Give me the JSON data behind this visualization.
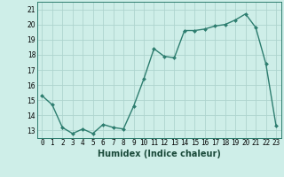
{
  "xlabel": "Humidex (Indice chaleur)",
  "x": [
    0,
    1,
    2,
    3,
    4,
    5,
    6,
    7,
    8,
    9,
    10,
    11,
    12,
    13,
    14,
    15,
    16,
    17,
    18,
    19,
    20,
    21,
    22,
    23
  ],
  "y": [
    15.3,
    14.7,
    13.2,
    12.8,
    13.1,
    12.8,
    13.4,
    13.2,
    13.1,
    14.6,
    16.4,
    18.4,
    17.9,
    17.8,
    19.6,
    19.6,
    19.7,
    19.9,
    20.0,
    20.3,
    20.7,
    19.8,
    17.4,
    13.3
  ],
  "ylim": [
    12.5,
    21.5
  ],
  "xlim": [
    -0.5,
    23.5
  ],
  "yticks": [
    13,
    14,
    15,
    16,
    17,
    18,
    19,
    20,
    21
  ],
  "xticks": [
    0,
    1,
    2,
    3,
    4,
    5,
    6,
    7,
    8,
    9,
    10,
    11,
    12,
    13,
    14,
    15,
    16,
    17,
    18,
    19,
    20,
    21,
    22,
    23
  ],
  "line_color": "#2d7d6f",
  "marker_color": "#2d7d6f",
  "bg_color": "#ceeee8",
  "grid_color": "#aed4ce",
  "marker": "D",
  "marker_size": 2.0,
  "line_width": 1.0,
  "tick_fontsize": 5.5,
  "xlabel_fontsize": 7.0
}
